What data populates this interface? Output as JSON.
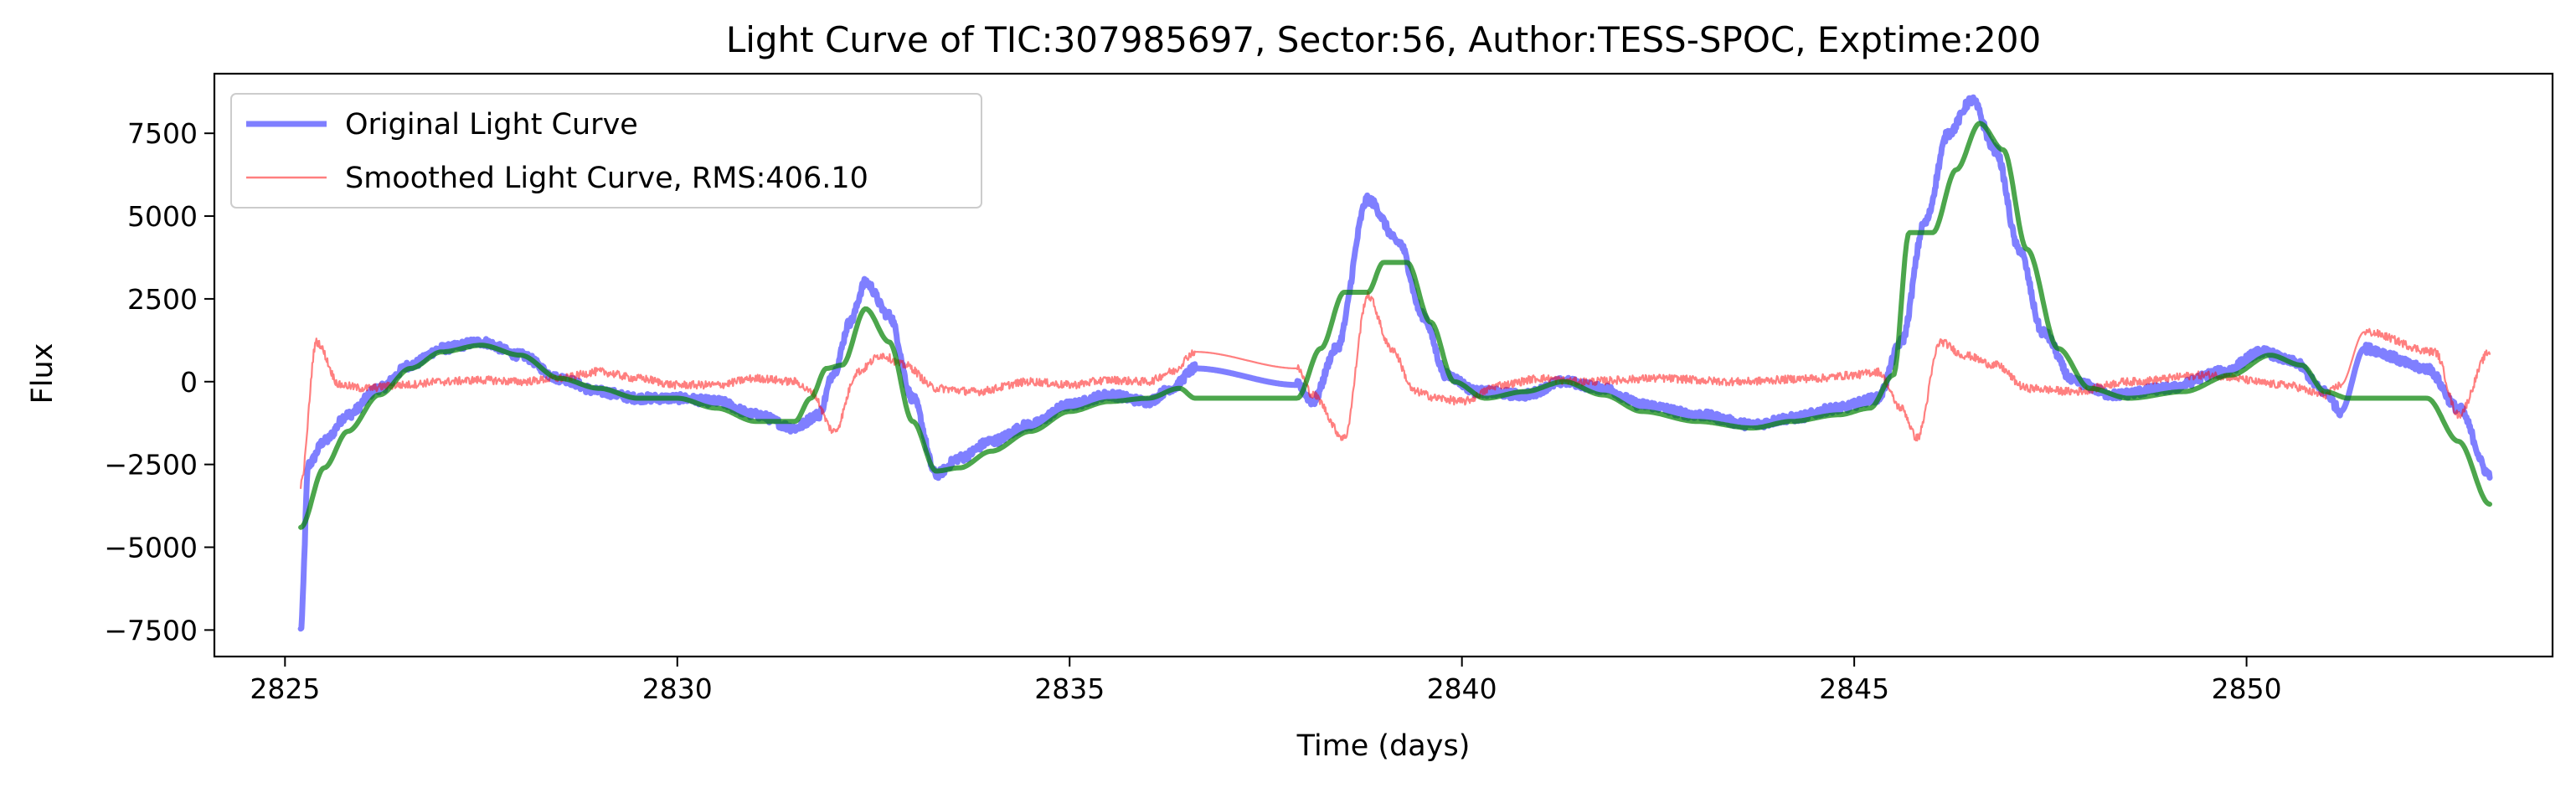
{
  "chart_data": {
    "type": "line",
    "title": "Light Curve of TIC:307985697, Sector:56, Author:TESS-SPOC, Exptime:200",
    "xlabel": "Time (days)",
    "ylabel": "Flux",
    "xlim": [
      2824.1,
      2853.9
    ],
    "ylim": [
      -8300,
      9300
    ],
    "xticks": [
      2825,
      2830,
      2835,
      2840,
      2845,
      2850
    ],
    "yticks": [
      -7500,
      -5000,
      -2500,
      0,
      2500,
      5000,
      7500
    ],
    "xtick_labels": [
      "2825",
      "2830",
      "2835",
      "2840",
      "2845",
      "2850"
    ],
    "ytick_labels": [
      "−7500",
      "−5000",
      "−2500",
      "0",
      "2500",
      "5000",
      "7500"
    ],
    "grid": false,
    "legend_position": "top-left",
    "series": [
      {
        "name": "Original Light Curve",
        "color": "#0000ff",
        "alpha": 0.5,
        "style": "thick-noisy",
        "x": [
          2825.2,
          2825.3,
          2825.5,
          2825.8,
          2826.2,
          2826.6,
          2827.0,
          2827.5,
          2828.0,
          2828.5,
          2829.0,
          2829.5,
          2830.0,
          2830.5,
          2831.0,
          2831.5,
          2831.8,
          2832.0,
          2832.2,
          2832.4,
          2832.7,
          2833.0,
          2833.3,
          2833.6,
          2834.0,
          2834.5,
          2835.0,
          2835.5,
          2836.0,
          2836.3,
          2836.6,
          2837.9,
          2838.1,
          2838.4,
          2838.8,
          2839.2,
          2839.5,
          2839.8,
          2840.2,
          2840.8,
          2841.3,
          2841.8,
          2842.3,
          2843.0,
          2843.7,
          2844.2,
          2844.8,
          2845.3,
          2845.6,
          2845.9,
          2846.2,
          2846.5,
          2846.8,
          2847.1,
          2847.4,
          2847.8,
          2848.3,
          2849.0,
          2849.7,
          2850.2,
          2850.6,
          2851.0,
          2851.2,
          2851.5,
          2852.3,
          2852.7,
          2853.1
        ],
        "y": [
          -7500,
          -2500,
          -1800,
          -1000,
          -200,
          500,
          1000,
          1200,
          800,
          100,
          -300,
          -500,
          -500,
          -600,
          -1000,
          -1400,
          -1000,
          300,
          1800,
          3000,
          2000,
          -500,
          -2800,
          -2300,
          -1800,
          -1300,
          -700,
          -400,
          -600,
          -200,
          400,
          -100,
          -600,
          1000,
          5500,
          4200,
          2000,
          200,
          -300,
          -400,
          0,
          -200,
          -700,
          -1000,
          -1300,
          -1100,
          -800,
          -500,
          1200,
          4800,
          7500,
          8500,
          7000,
          4000,
          1500,
          0,
          -400,
          -200,
          300,
          900,
          600,
          -300,
          -900,
          1000,
          400,
          -800,
          -2800
        ]
      },
      {
        "name": "Smoothed Light Curve, RMS:406.10",
        "color": "#ff0000",
        "alpha": 0.5,
        "style": "thin-noisy",
        "x": [
          2825.2,
          2825.4,
          2825.7,
          2826.0,
          2826.5,
          2827.0,
          2827.5,
          2828.0,
          2828.5,
          2829.0,
          2829.5,
          2830.0,
          2830.5,
          2831.0,
          2831.5,
          2831.7,
          2832.0,
          2832.3,
          2832.6,
          2832.9,
          2833.3,
          2833.8,
          2834.5,
          2835.0,
          2835.5,
          2836.0,
          2836.3,
          2836.6,
          2837.9,
          2838.1,
          2838.5,
          2838.8,
          2839.1,
          2839.4,
          2839.7,
          2840.0,
          2840.5,
          2841.0,
          2841.5,
          2842.5,
          2843.5,
          2844.5,
          2845.0,
          2845.3,
          2845.6,
          2845.8,
          2846.1,
          2846.4,
          2846.8,
          2847.2,
          2847.8,
          2848.5,
          2849.5,
          2850.5,
          2851.0,
          2851.2,
          2851.5,
          2852.4,
          2852.7,
          2853.1
        ],
        "y": [
          -3100,
          1200,
          -100,
          -200,
          -100,
          0,
          50,
          0,
          100,
          300,
          100,
          -100,
          -100,
          100,
          0,
          -300,
          -1500,
          300,
          800,
          500,
          -200,
          -300,
          0,
          -100,
          50,
          0,
          300,
          900,
          400,
          -400,
          -1700,
          2600,
          1000,
          -300,
          -500,
          -600,
          -100,
          100,
          0,
          100,
          0,
          100,
          200,
          300,
          -800,
          -1700,
          1200,
          800,
          500,
          -200,
          -300,
          0,
          200,
          -100,
          -400,
          -100,
          1500,
          900,
          -1000,
          900
        ]
      },
      {
        "name": "",
        "color": "#008000",
        "alpha": 0.7,
        "style": "smooth",
        "x": [
          2825.2,
          2825.5,
          2825.8,
          2826.2,
          2826.6,
          2827.0,
          2827.5,
          2828.0,
          2828.5,
          2829.0,
          2829.5,
          2830.0,
          2830.5,
          2831.0,
          2831.5,
          2831.7,
          2831.9,
          2832.1,
          2832.4,
          2832.7,
          2833.0,
          2833.3,
          2833.6,
          2834.0,
          2834.5,
          2835.0,
          2835.5,
          2836.0,
          2836.4,
          2836.6,
          2837.9,
          2838.2,
          2838.5,
          2838.8,
          2839.0,
          2839.3,
          2839.6,
          2839.9,
          2840.3,
          2840.8,
          2841.3,
          2841.8,
          2842.3,
          2843.0,
          2843.7,
          2844.2,
          2844.8,
          2845.2,
          2845.5,
          2845.7,
          2846.0,
          2846.3,
          2846.6,
          2846.9,
          2847.2,
          2847.6,
          2848.0,
          2848.5,
          2849.2,
          2849.8,
          2850.3,
          2850.7,
          2851.0,
          2851.3,
          2851.6,
          2852.3,
          2852.7,
          2853.1
        ],
        "y": [
          -4400,
          -2600,
          -1500,
          -400,
          400,
          900,
          1100,
          800,
          100,
          -200,
          -500,
          -500,
          -800,
          -1200,
          -1200,
          -500,
          400,
          500,
          2200,
          1200,
          -1200,
          -2700,
          -2600,
          -2100,
          -1500,
          -900,
          -600,
          -500,
          -200,
          -500,
          -500,
          1000,
          2700,
          2700,
          3600,
          3600,
          1800,
          0,
          -500,
          -300,
          0,
          -400,
          -900,
          -1200,
          -1400,
          -1200,
          -1000,
          -800,
          200,
          4500,
          4500,
          6400,
          7800,
          7000,
          4000,
          1000,
          -200,
          -500,
          -300,
          200,
          800,
          500,
          -300,
          -500,
          -500,
          -500,
          -1800,
          -3700
        ]
      }
    ]
  }
}
